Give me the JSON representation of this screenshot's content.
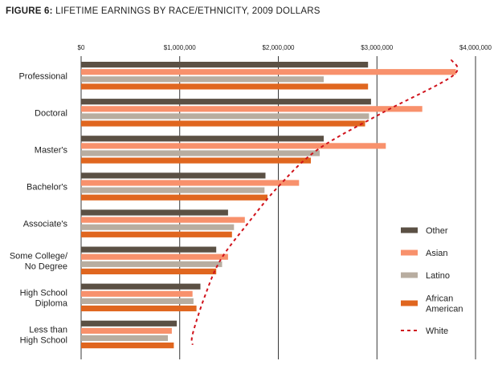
{
  "title": {
    "prefix": "FIGURE 6:",
    "text": "LIFETIME EARNINGS BY RACE/ETHNICITY, 2009 DOLLARS"
  },
  "chart_data": {
    "type": "bar",
    "orientation": "horizontal",
    "title": "FIGURE 6: LIFETIME EARNINGS BY RACE/ETHNICITY, 2009 DOLLARS",
    "xlim": [
      0,
      4000000
    ],
    "x_ticks": [
      0,
      1000000,
      2000000,
      3000000,
      4000000
    ],
    "x_tick_labels": [
      "$0",
      "$1,000,000",
      "$2,000,000",
      "$3,000,000",
      "$4,000,000"
    ],
    "categories": [
      [
        "Professional"
      ],
      [
        "Doctoral"
      ],
      [
        "Master's"
      ],
      [
        "Bachelor's"
      ],
      [
        "Associate's"
      ],
      [
        "Some College/",
        "No Degree"
      ],
      [
        "High School",
        "Diploma"
      ],
      [
        "Less than",
        "High School"
      ]
    ],
    "series": [
      {
        "name": "Other",
        "color": "#5b5044",
        "values": [
          2910000,
          2940000,
          2460000,
          1870000,
          1490000,
          1370000,
          1210000,
          970000
        ]
      },
      {
        "name": "Asian",
        "color": "#f8916c",
        "values": [
          3800000,
          3460000,
          3090000,
          2210000,
          1660000,
          1490000,
          1130000,
          920000
        ]
      },
      {
        "name": "Latino",
        "color": "#b8ada0",
        "values": [
          2460000,
          2920000,
          2420000,
          1860000,
          1550000,
          1430000,
          1140000,
          880000
        ]
      },
      {
        "name": "African American",
        "color": "#e0661f",
        "values": [
          2910000,
          2880000,
          2330000,
          1890000,
          1530000,
          1370000,
          1170000,
          940000
        ]
      }
    ],
    "line_series": {
      "name": "White",
      "color": "#d0121b",
      "style": "dotted",
      "values": [
        3770000,
        3060000,
        2400000,
        2000000,
        1690000,
        1410000,
        1250000,
        1130000
      ]
    },
    "legend": {
      "position": "right",
      "items": [
        {
          "label": [
            "Other"
          ],
          "color": "#5b5044",
          "kind": "bar"
        },
        {
          "label": [
            "Asian"
          ],
          "color": "#f8916c",
          "kind": "bar"
        },
        {
          "label": [
            "Latino"
          ],
          "color": "#b8ada0",
          "kind": "bar"
        },
        {
          "label": [
            "African",
            "American"
          ],
          "color": "#e0661f",
          "kind": "bar"
        },
        {
          "label": [
            "White"
          ],
          "color": "#d0121b",
          "kind": "line"
        }
      ]
    }
  }
}
